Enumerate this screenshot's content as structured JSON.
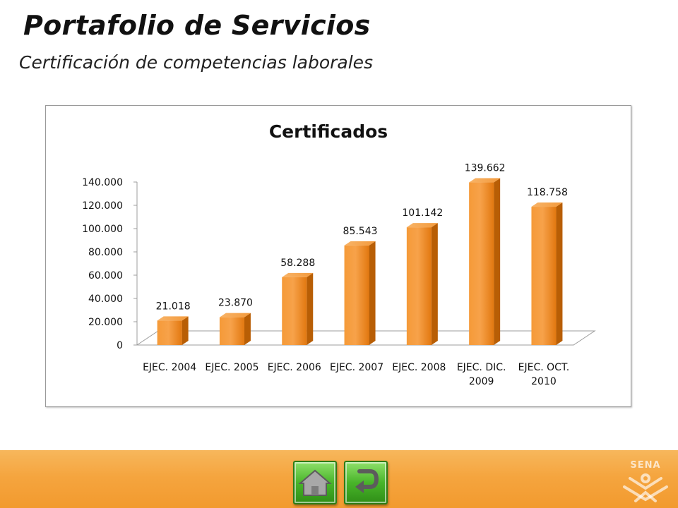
{
  "header": {
    "title": "Portafolio de Servicios",
    "subtitle": "Certificación de competencias laborales"
  },
  "chart_data": {
    "type": "bar",
    "title": "Certificados",
    "categories": [
      "EJEC. 2004",
      "EJEC. 2005",
      "EJEC. 2006",
      "EJEC. 2007",
      "EJEC. 2008",
      "EJEC. DIC. 2009",
      "EJEC. OCT. 2010"
    ],
    "values": [
      21018,
      23870,
      58288,
      85543,
      101142,
      139662,
      118758
    ],
    "value_labels": [
      "21.018",
      "23.870",
      "58.288",
      "85.543",
      "101.142",
      "139.662",
      "118.758"
    ],
    "y_ticks": [
      0,
      20000,
      40000,
      60000,
      80000,
      100000,
      120000,
      140000
    ],
    "y_tick_labels": [
      "0",
      "20.000",
      "40.000",
      "60.000",
      "80.000",
      "100.000",
      "120.000",
      "140.000"
    ],
    "ylim": [
      0,
      140000
    ],
    "xlabel": "",
    "ylabel": "",
    "grid": false,
    "legend": "none",
    "style": "3d-column",
    "bar_color": "#f28a1e"
  },
  "footer": {
    "home_icon": "home-icon",
    "back_icon": "return-arrow-icon",
    "logo_text": "SENA",
    "band_color": "#f5a53f"
  }
}
